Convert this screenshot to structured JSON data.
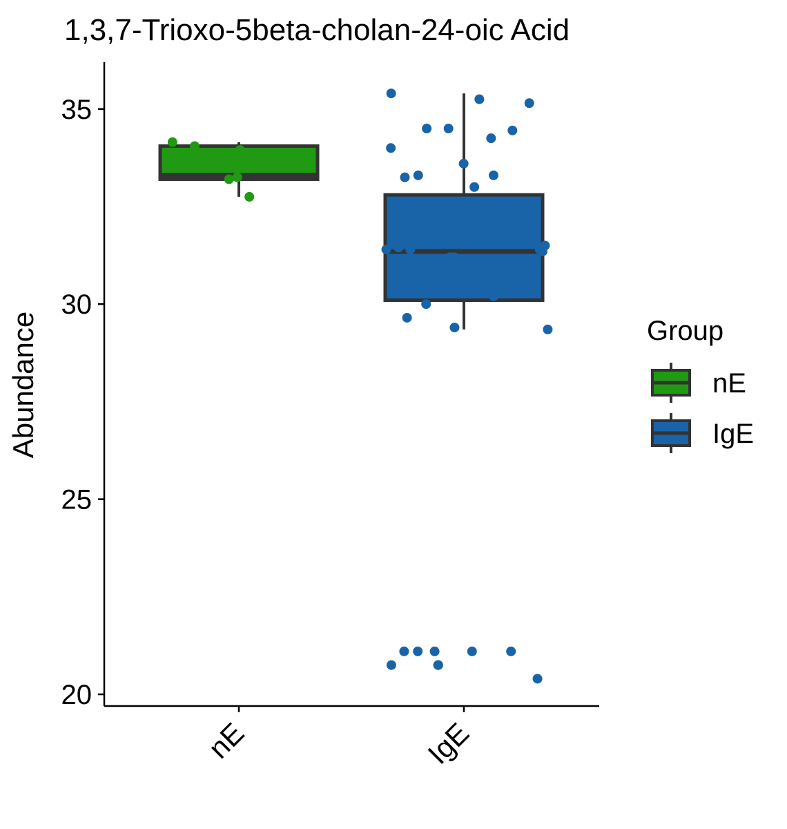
{
  "chart_data": {
    "type": "box",
    "title": "1,3,7-Trioxo-5beta-cholan-24-oic Acid",
    "ylabel": "Abundance",
    "xlabel": "",
    "ylim": [
      19.7,
      36.2
    ],
    "yticks": [
      20,
      25,
      30,
      35
    ],
    "categories": [
      "nE",
      "IgE"
    ],
    "legend": {
      "title": "Group",
      "position": "right",
      "entries": [
        {
          "label": "nE",
          "color": "#1f9a12"
        },
        {
          "label": "IgE",
          "color": "#1964a8"
        }
      ]
    },
    "colors": {
      "nE": "#1f9a12",
      "IgE": "#1964a8",
      "box_outline": "#333333"
    },
    "boxes": [
      {
        "group": "nE",
        "whisker_low": 32.75,
        "q1": 33.2,
        "median": 33.3,
        "q3": 34.05,
        "whisker_high": 34.15
      },
      {
        "group": "IgE",
        "whisker_low": 29.35,
        "q1": 30.1,
        "median": 31.35,
        "q3": 32.8,
        "whisker_high": 35.4
      }
    ],
    "points": [
      {
        "group": "nE",
        "values": [
          33.25,
          32.75,
          34.15,
          34.05,
          33.2,
          33.95
        ]
      },
      {
        "group": "IgE",
        "values": [
          35.4,
          35.15,
          35.25,
          34.5,
          34.5,
          34.45,
          34.25,
          34.0,
          33.6,
          33.3,
          33.3,
          33.25,
          33.0,
          32.3,
          32.0,
          31.4,
          31.4,
          31.5,
          31.45,
          31.2,
          31.35,
          31.4,
          31.2,
          30.55,
          30.2,
          30.0,
          29.65,
          29.35,
          29.4,
          21.1,
          21.1,
          21.1,
          21.1,
          21.1,
          20.75,
          20.75,
          20.75,
          20.4
        ]
      }
    ]
  }
}
